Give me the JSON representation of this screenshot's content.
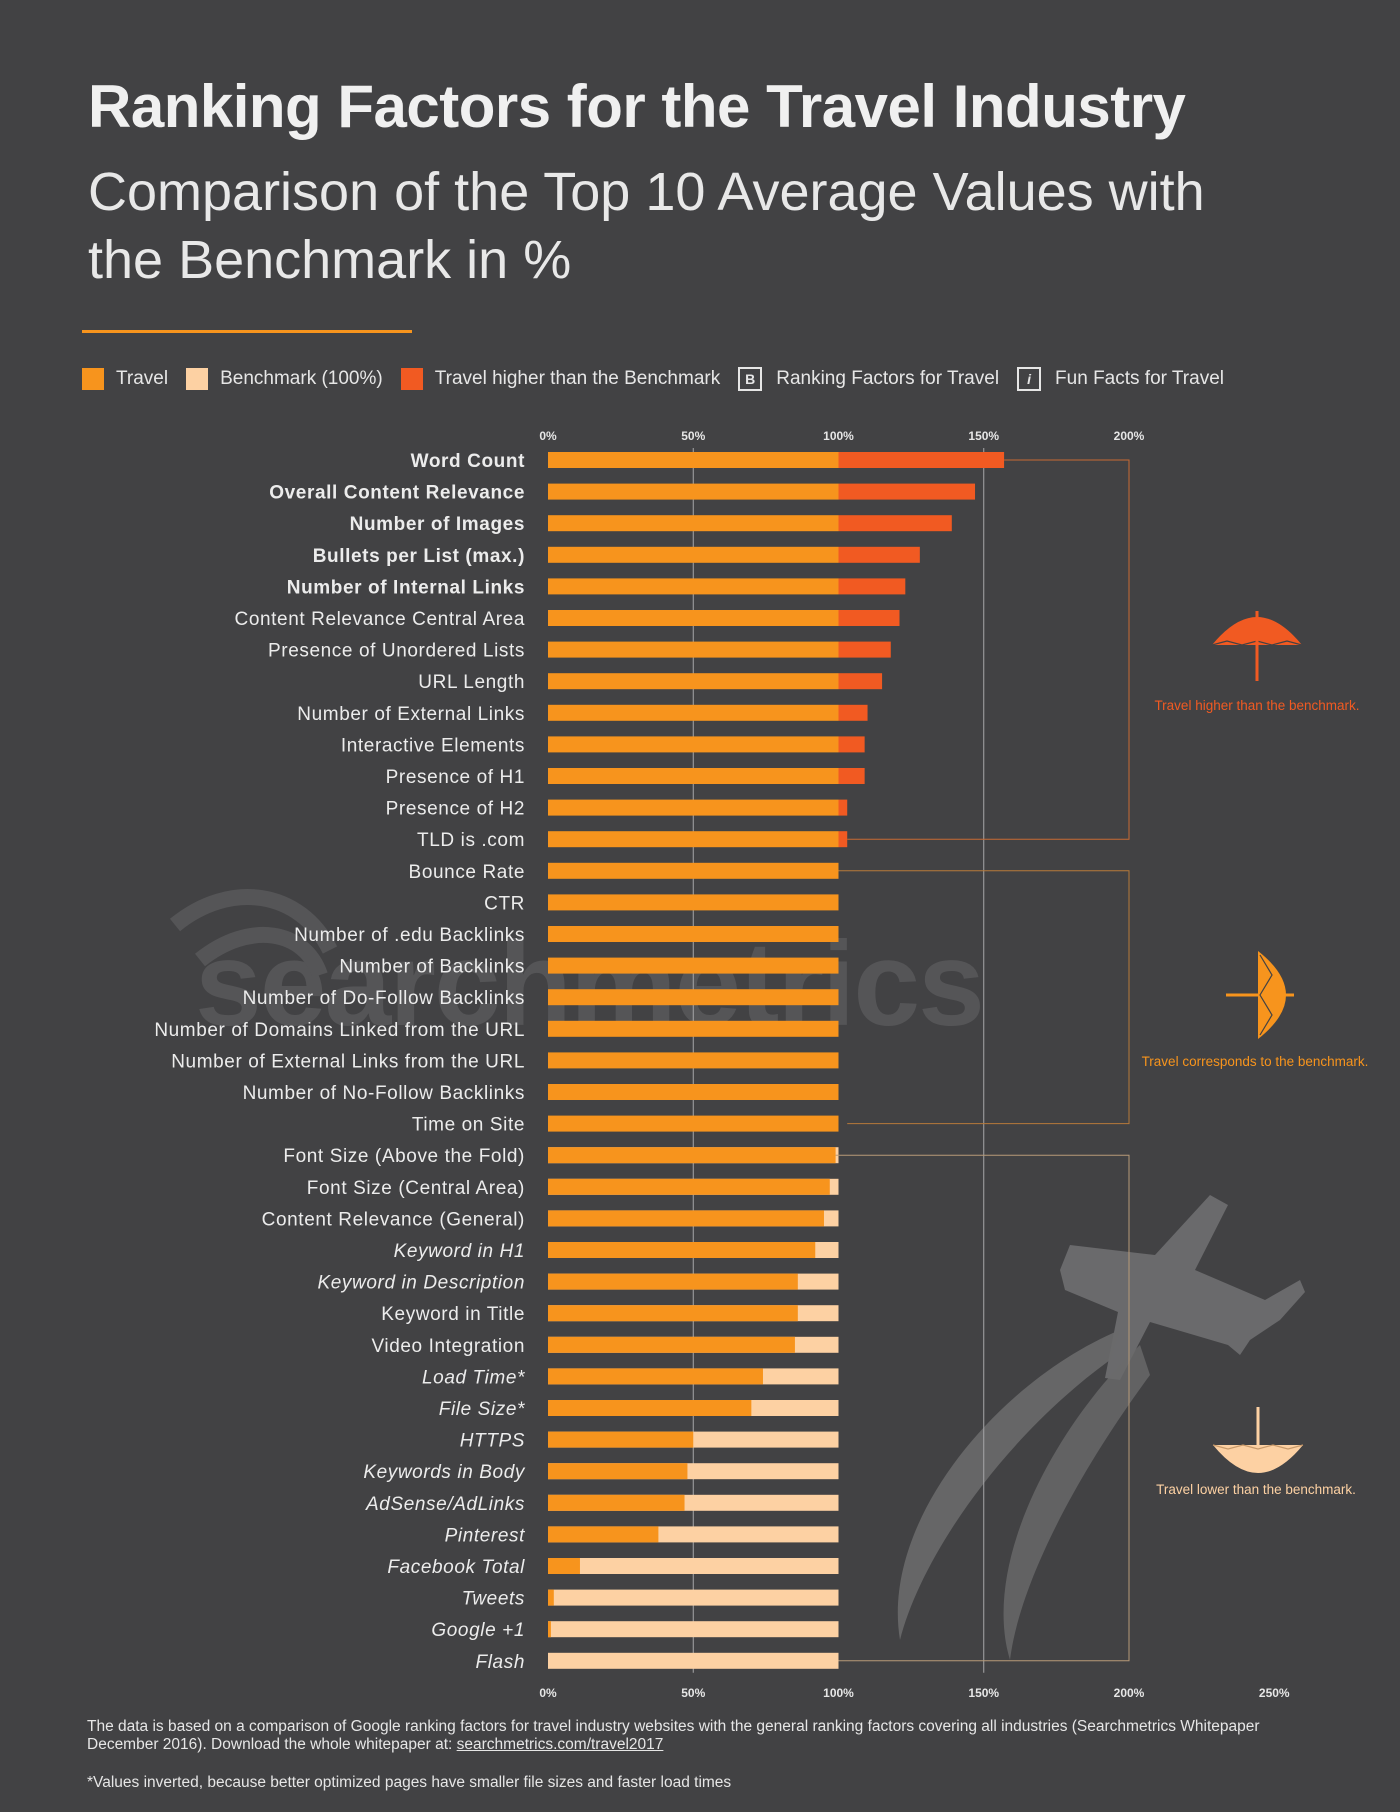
{
  "title": "Ranking Factors for the Travel Industry",
  "subtitle": "Comparison of the Top 10 Average Values with the Benchmark in %",
  "watermark": "searchmetrics",
  "legend": [
    {
      "label": "Travel",
      "color": "#f7941d"
    },
    {
      "label": "Benchmark (100%)",
      "color": "#fdd1a3"
    },
    {
      "label": "Travel higher than the Benchmark",
      "color": "#f15a22"
    },
    {
      "label": "Ranking Factors for Travel",
      "symbol": "B"
    },
    {
      "label": "Fun Facts for Travel",
      "symbol": "i"
    }
  ],
  "annotations": [
    {
      "text": "Travel higher than the benchmark.",
      "color": "#f15a22",
      "icon": "umbrella-up-icon"
    },
    {
      "text": "Travel corresponds to the benchmark.",
      "color": "#f7941d",
      "icon": "umbrella-side-icon"
    },
    {
      "text": "Travel lower than the benchmark.",
      "color": "#fdd1a3",
      "icon": "umbrella-down-icon"
    }
  ],
  "colors": {
    "travel": "#f7941d",
    "benchmark": "#fdd1a3",
    "higher": "#f15a22",
    "bracket": "#c86a33"
  },
  "chart_data": {
    "type": "bar",
    "orientation": "horizontal",
    "unit": "%",
    "xlim": [
      0,
      250
    ],
    "ticks_top": [
      "0%",
      "50%",
      "100%",
      "150%",
      "200%"
    ],
    "ticks_bottom": [
      "0%",
      "50%",
      "100%",
      "150%",
      "200%",
      "250%"
    ],
    "gridlines": [
      50,
      150
    ],
    "categories": [
      {
        "label": "Word Count",
        "value": 157,
        "style": "bold"
      },
      {
        "label": "Overall Content Relevance",
        "value": 147,
        "style": "bold"
      },
      {
        "label": "Number of Images",
        "value": 139,
        "style": "bold"
      },
      {
        "label": "Bullets per List (max.)",
        "value": 128,
        "style": "bold"
      },
      {
        "label": "Number of Internal Links",
        "value": 123,
        "style": "bold"
      },
      {
        "label": "Content Relevance Central Area",
        "value": 121,
        "style": "normal"
      },
      {
        "label": "Presence of Unordered Lists",
        "value": 118,
        "style": "normal"
      },
      {
        "label": "URL Length",
        "value": 115,
        "style": "normal"
      },
      {
        "label": "Number of External Links",
        "value": 110,
        "style": "normal"
      },
      {
        "label": "Interactive Elements",
        "value": 109,
        "style": "normal"
      },
      {
        "label": "Presence of H1",
        "value": 109,
        "style": "normal"
      },
      {
        "label": "Presence of H2",
        "value": 103,
        "style": "normal"
      },
      {
        "label": "TLD is .com",
        "value": 103,
        "style": "normal"
      },
      {
        "label": "Bounce Rate",
        "value": 100,
        "style": "normal"
      },
      {
        "label": "CTR",
        "value": 100,
        "style": "normal"
      },
      {
        "label": "Number of .edu Backlinks",
        "value": 100,
        "style": "normal"
      },
      {
        "label": "Number of Backlinks",
        "value": 100,
        "style": "normal"
      },
      {
        "label": "Number of Do-Follow Backlinks",
        "value": 100,
        "style": "normal"
      },
      {
        "label": "Number of Domains Linked from the URL",
        "value": 100,
        "style": "normal"
      },
      {
        "label": "Number of External Links from the URL",
        "value": 100,
        "style": "normal"
      },
      {
        "label": "Number of No-Follow Backlinks",
        "value": 100,
        "style": "normal"
      },
      {
        "label": "Time on Site",
        "value": 100,
        "style": "normal"
      },
      {
        "label": "Font Size (Above the Fold)",
        "value": 99,
        "style": "normal"
      },
      {
        "label": "Font Size (Central Area)",
        "value": 97,
        "style": "normal"
      },
      {
        "label": "Content Relevance (General)",
        "value": 95,
        "style": "normal"
      },
      {
        "label": "Keyword in H1",
        "value": 92,
        "style": "italic"
      },
      {
        "label": "Keyword in Description",
        "value": 86,
        "style": "italic"
      },
      {
        "label": "Keyword in Title",
        "value": 86,
        "style": "normal"
      },
      {
        "label": "Video Integration",
        "value": 85,
        "style": "normal"
      },
      {
        "label": "Load Time*",
        "value": 74,
        "style": "italic"
      },
      {
        "label": "File Size*",
        "value": 70,
        "style": "italic"
      },
      {
        "label": "HTTPS",
        "value": 50,
        "style": "italic"
      },
      {
        "label": "Keywords in Body",
        "value": 48,
        "style": "italic"
      },
      {
        "label": "AdSense/AdLinks",
        "value": 47,
        "style": "italic"
      },
      {
        "label": "Pinterest",
        "value": 38,
        "style": "italic"
      },
      {
        "label": "Facebook Total",
        "value": 11,
        "style": "italic"
      },
      {
        "label": "Tweets",
        "value": 2,
        "style": "italic"
      },
      {
        "label": "Google +1",
        "value": 1,
        "style": "italic"
      },
      {
        "label": "Flash",
        "value": 0,
        "style": "italic"
      }
    ]
  },
  "footer": {
    "text": "The data is based on a comparison of Google ranking factors for travel industry websites with the general ranking factors covering all industries (Searchmetrics Whitepaper December 2016). Download the whole whitepaper at: ",
    "link": "searchmetrics.com/travel2017",
    "note": "*Values inverted, because better optimized pages have smaller file sizes and faster load times"
  }
}
